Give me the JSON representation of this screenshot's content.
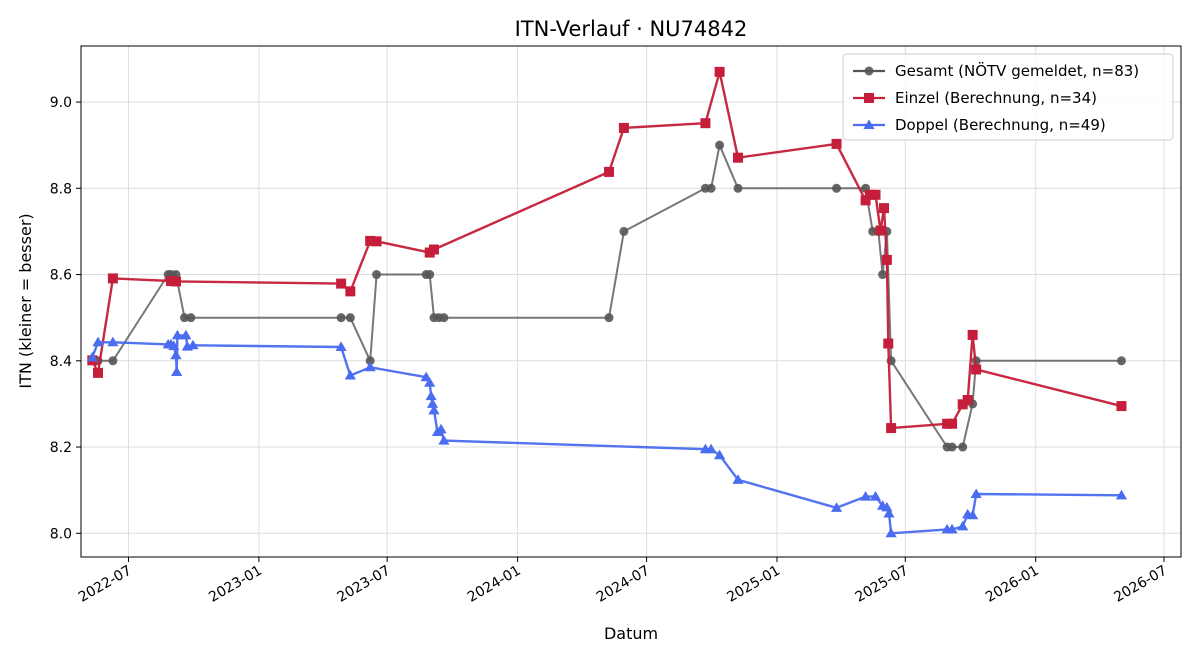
{
  "chart_data": {
    "type": "line",
    "title": "ITN-Verlauf · NU74842",
    "xlabel": "Datum",
    "ylabel": "ITN  (kleiner = besser)",
    "x_type": "date",
    "xlim": [
      "2022-04-25",
      "2026-07-25"
    ],
    "ylim": [
      7.945,
      9.13
    ],
    "x_ticks": [
      {
        "date": "2022-07-01",
        "label": "2022-07"
      },
      {
        "date": "2023-01-01",
        "label": "2023-01"
      },
      {
        "date": "2023-07-01",
        "label": "2023-07"
      },
      {
        "date": "2024-01-01",
        "label": "2024-01"
      },
      {
        "date": "2024-07-01",
        "label": "2024-07"
      },
      {
        "date": "2025-01-01",
        "label": "2025-01"
      },
      {
        "date": "2025-07-01",
        "label": "2025-07"
      },
      {
        "date": "2026-01-01",
        "label": "2026-01"
      },
      {
        "date": "2026-07-01",
        "label": "2026-07"
      }
    ],
    "y_ticks": [
      8.0,
      8.2,
      8.4,
      8.6,
      8.8,
      9.0
    ],
    "grid": true,
    "legend_position": "top-right",
    "series": [
      {
        "name": "Gesamt (NÖTV gemeldet, n=83)",
        "color": "#555555",
        "marker": "circle",
        "points": [
          [
            "2022-05-11",
            8.4
          ],
          [
            "2022-05-19",
            8.4
          ],
          [
            "2022-06-09",
            8.4
          ],
          [
            "2022-08-26",
            8.6
          ],
          [
            "2022-08-30",
            8.6
          ],
          [
            "2022-09-06",
            8.6
          ],
          [
            "2022-09-18",
            8.5
          ],
          [
            "2022-09-27",
            8.5
          ],
          [
            "2023-04-27",
            8.5
          ],
          [
            "2023-05-10",
            8.5
          ],
          [
            "2023-06-07",
            8.4
          ],
          [
            "2023-06-16",
            8.6
          ],
          [
            "2023-08-25",
            8.6
          ],
          [
            "2023-08-30",
            8.6
          ],
          [
            "2023-09-05",
            8.5
          ],
          [
            "2023-09-12",
            8.5
          ],
          [
            "2023-09-19",
            8.5
          ],
          [
            "2024-05-09",
            8.5
          ],
          [
            "2024-05-30",
            8.7
          ],
          [
            "2024-09-22",
            8.8
          ],
          [
            "2024-09-30",
            8.8
          ],
          [
            "2024-10-12",
            8.9
          ],
          [
            "2024-11-07",
            8.8
          ],
          [
            "2025-03-26",
            8.8
          ],
          [
            "2025-05-06",
            8.8
          ],
          [
            "2025-05-16",
            8.7
          ],
          [
            "2025-05-24",
            8.7
          ],
          [
            "2025-05-30",
            8.6
          ],
          [
            "2025-06-05",
            8.7
          ],
          [
            "2025-06-11",
            8.4
          ],
          [
            "2025-08-29",
            8.2
          ],
          [
            "2025-09-05",
            8.2
          ],
          [
            "2025-09-20",
            8.2
          ],
          [
            "2025-10-04",
            8.3
          ],
          [
            "2025-10-09",
            8.4
          ],
          [
            "2026-05-02",
            8.4
          ]
        ]
      },
      {
        "name": "Einzel (Berechnung, n=34)",
        "color": "#c41e3a",
        "marker": "square",
        "points": [
          [
            "2022-05-11",
            8.401
          ],
          [
            "2022-05-19",
            8.372
          ],
          [
            "2022-06-09",
            8.591
          ],
          [
            "2022-08-30",
            8.585
          ],
          [
            "2022-09-06",
            8.584
          ],
          [
            "2023-04-27",
            8.579
          ],
          [
            "2023-05-10",
            8.561
          ],
          [
            "2023-06-07",
            8.678
          ],
          [
            "2023-06-16",
            8.677
          ],
          [
            "2023-08-30",
            8.651
          ],
          [
            "2023-09-05",
            8.658
          ],
          [
            "2024-05-09",
            8.838
          ],
          [
            "2024-05-30",
            8.94
          ],
          [
            "2024-09-22",
            8.951
          ],
          [
            "2024-10-12",
            9.07
          ],
          [
            "2024-11-07",
            8.871
          ],
          [
            "2025-03-26",
            8.903
          ],
          [
            "2025-05-06",
            8.772
          ],
          [
            "2025-05-12",
            8.785
          ],
          [
            "2025-05-20",
            8.785
          ],
          [
            "2025-05-27",
            8.702
          ],
          [
            "2025-06-01",
            8.754
          ],
          [
            "2025-06-05",
            8.634
          ],
          [
            "2025-06-07",
            8.44
          ],
          [
            "2025-06-11",
            8.244
          ],
          [
            "2025-08-29",
            8.254
          ],
          [
            "2025-09-05",
            8.254
          ],
          [
            "2025-09-20",
            8.299
          ],
          [
            "2025-09-27",
            8.309
          ],
          [
            "2025-10-04",
            8.46
          ],
          [
            "2025-10-09",
            8.38
          ],
          [
            "2026-05-02",
            8.295
          ]
        ]
      },
      {
        "name": "Doppel (Berechnung, n=49)",
        "color": "#4a6cf0",
        "marker": "triangle",
        "points": [
          [
            "2022-05-11",
            8.408
          ],
          [
            "2022-05-19",
            8.443
          ],
          [
            "2022-06-09",
            8.443
          ],
          [
            "2022-08-26",
            8.438
          ],
          [
            "2022-08-30",
            8.438
          ],
          [
            "2022-09-03",
            8.434
          ],
          [
            "2022-09-06",
            8.413
          ],
          [
            "2022-09-07",
            8.374
          ],
          [
            "2022-09-08",
            8.459
          ],
          [
            "2022-09-20",
            8.459
          ],
          [
            "2022-09-22",
            8.433
          ],
          [
            "2022-09-30",
            8.436
          ],
          [
            "2023-04-27",
            8.432
          ],
          [
            "2023-05-10",
            8.366
          ],
          [
            "2023-06-07",
            8.385
          ],
          [
            "2023-08-25",
            8.362
          ],
          [
            "2023-08-30",
            8.349
          ],
          [
            "2023-09-01",
            8.318
          ],
          [
            "2023-09-03",
            8.3
          ],
          [
            "2023-09-05",
            8.285
          ],
          [
            "2023-09-10",
            8.235
          ],
          [
            "2023-09-15",
            8.241
          ],
          [
            "2023-09-19",
            8.215
          ],
          [
            "2024-09-22",
            8.195
          ],
          [
            "2024-09-30",
            8.195
          ],
          [
            "2024-10-12",
            8.181
          ],
          [
            "2024-11-07",
            8.124
          ],
          [
            "2025-03-26",
            8.059
          ],
          [
            "2025-05-06",
            8.085
          ],
          [
            "2025-05-20",
            8.085
          ],
          [
            "2025-05-30",
            8.064
          ],
          [
            "2025-06-05",
            8.06
          ],
          [
            "2025-06-08",
            8.046
          ],
          [
            "2025-06-11",
            8.0
          ],
          [
            "2025-08-29",
            8.009
          ],
          [
            "2025-09-05",
            8.009
          ],
          [
            "2025-09-20",
            8.016
          ],
          [
            "2025-09-27",
            8.044
          ],
          [
            "2025-10-04",
            8.042
          ],
          [
            "2025-10-09",
            8.091
          ],
          [
            "2026-05-02",
            8.088
          ]
        ]
      }
    ]
  }
}
